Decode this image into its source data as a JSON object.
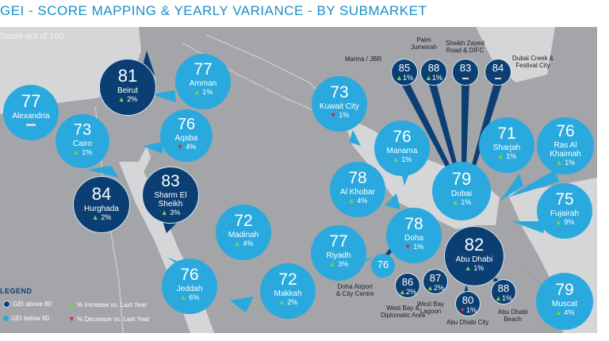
{
  "title": "GEI - SCORE MAPPING & YEARLY VARIANCE - BY SUBMARKET",
  "subtitle": "Score out of 100",
  "colors": {
    "above80": "#0b3f73",
    "below80": "#2aa9de",
    "increase": "#7cd34a",
    "decrease": "#e3262f",
    "land": "#a3a5a8"
  },
  "cities": [
    {
      "name": "Alexandria",
      "score": "77",
      "var": "",
      "dir": "flat",
      "tier": "light"
    },
    {
      "name": "Beirut",
      "score": "81",
      "var": "2%",
      "dir": "up",
      "tier": "dark"
    },
    {
      "name": "Amman",
      "score": "77",
      "var": "1%",
      "dir": "up",
      "tier": "light"
    },
    {
      "name": "Cairo",
      "score": "73",
      "var": "1%",
      "dir": "up",
      "tier": "light"
    },
    {
      "name": "Aqaba",
      "score": "76",
      "var": "4%",
      "dir": "down",
      "tier": "light"
    },
    {
      "name": "Hurghada",
      "score": "84",
      "var": "2%",
      "dir": "up",
      "tier": "dark"
    },
    {
      "name": "Sharm El Sheikh",
      "score": "83",
      "var": "3%",
      "dir": "up",
      "tier": "dark"
    },
    {
      "name": "Madinah",
      "score": "72",
      "var": "4%",
      "dir": "up",
      "tier": "light"
    },
    {
      "name": "Jeddah",
      "score": "76",
      "var": "6%",
      "dir": "up",
      "tier": "light"
    },
    {
      "name": "Makkah",
      "score": "72",
      "var": "2%",
      "dir": "up",
      "tier": "light"
    },
    {
      "name": "Kuwait City",
      "score": "73",
      "var": "1%",
      "dir": "down",
      "tier": "light"
    },
    {
      "name": "Manama",
      "score": "76",
      "var": "1%",
      "dir": "up",
      "tier": "light"
    },
    {
      "name": "Al Khobar",
      "score": "78",
      "var": "4%",
      "dir": "up",
      "tier": "light"
    },
    {
      "name": "Riyadh",
      "score": "77",
      "var": "3%",
      "dir": "up",
      "tier": "light"
    },
    {
      "name": "Doha",
      "score": "78",
      "var": "1%",
      "dir": "down",
      "tier": "light"
    },
    {
      "name": "Dubai",
      "score": "79",
      "var": "1%",
      "dir": "up",
      "tier": "light"
    },
    {
      "name": "Sharjah",
      "score": "71",
      "var": "1%",
      "dir": "up",
      "tier": "light"
    },
    {
      "name": "Ras Al Khaimah",
      "score": "76",
      "var": "1%",
      "dir": "up",
      "tier": "light"
    },
    {
      "name": "Fujairah",
      "score": "75",
      "var": "9%",
      "dir": "up",
      "tier": "light"
    },
    {
      "name": "Abu Dhabi",
      "score": "82",
      "var": "1%",
      "dir": "up",
      "tier": "dark"
    },
    {
      "name": "Muscat",
      "score": "79",
      "var": "4%",
      "dir": "up",
      "tier": "light"
    }
  ],
  "small": [
    {
      "name": "Marina / JBR",
      "score": "85",
      "var": "1%",
      "dir": "up",
      "tier": "dark"
    },
    {
      "name": "Palm Jumeirah",
      "score": "88",
      "var": "1%",
      "dir": "up",
      "tier": "dark"
    },
    {
      "name": "Sheikh Zayed Road & DIFC",
      "score": "83",
      "var": "",
      "dir": "flat",
      "tier": "dark"
    },
    {
      "name": "Dubai Creek & Festival City",
      "score": "84",
      "var": "",
      "dir": "flat",
      "tier": "dark"
    },
    {
      "name": "Doha Airport & City Centre",
      "score": "76",
      "var": "",
      "dir": "none",
      "tier": "light"
    },
    {
      "name": "West Bay & Diplomatic Area",
      "score": "86",
      "var": "2%",
      "dir": "up",
      "tier": "dark"
    },
    {
      "name": "West Bay Lagoon",
      "score": "87",
      "var": "2%",
      "dir": "up",
      "tier": "dark"
    },
    {
      "name": "Abu Dhabi City",
      "score": "80",
      "var": "1%",
      "dir": "down",
      "tier": "dark"
    },
    {
      "name": "Abu Dhabi Beach",
      "score": "88",
      "var": "1%",
      "dir": "up",
      "tier": "dark"
    }
  ],
  "small_labels": {
    "marina": "Marina / JBR",
    "palm1": "Palm",
    "palm2": "Jumeirah",
    "szr1": "Sheikh  Zayed",
    "szr2": "Road & DIFC",
    "creek1": "Dubai Creek &",
    "creek2": "Festival City",
    "dohaap1": "Doha Airport",
    "dohaap2": "& City Centre",
    "westbay1": "West Bay &",
    "westbay2": "Diplomatic Area",
    "lagoon1": "West Bay",
    "lagoon2": "Lagoon",
    "adcity": "Abu Dhabi City",
    "adbeach1": "Abu Dhabi",
    "adbeach2": "Beach"
  },
  "legend": {
    "heading": "LEGEND",
    "above": "GEI above 80",
    "below": "GEI below 80",
    "increase": "% Increase vs. Last Year",
    "decrease": "% Decrease vs. Last Year"
  }
}
